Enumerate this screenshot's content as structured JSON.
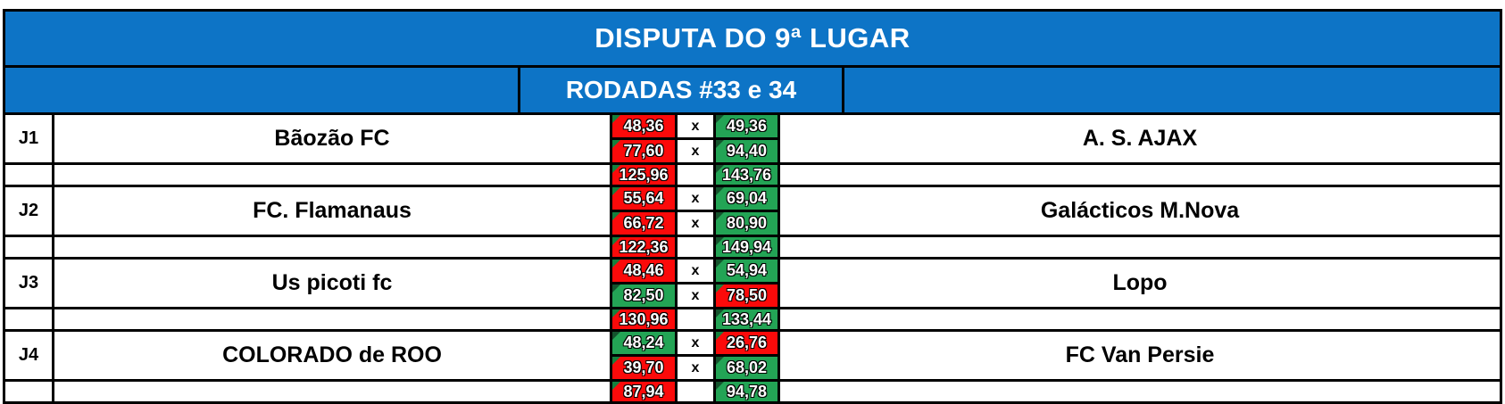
{
  "title": "DISPUTA DO 9ª LUGAR",
  "subtitle": "RODADAS #33 e 34",
  "separator": "x",
  "colors": {
    "header_blue": "#0d74c6",
    "win_green": "#23a455",
    "loss_red": "#fb0a0a",
    "flag_on_green": "#14532d",
    "flag_on_red": "#15803d",
    "grid_line": "#000000",
    "header_text": "#ffffff"
  },
  "matches": [
    {
      "label": "J1",
      "home_team": "Bãozão FC",
      "away_team": "A. S. AJAX",
      "g1": {
        "home": {
          "score": "48,36",
          "result": "loss"
        },
        "away": {
          "score": "49,36",
          "result": "win"
        }
      },
      "g2": {
        "home": {
          "score": "77,60",
          "result": "loss"
        },
        "away": {
          "score": "94,40",
          "result": "win"
        }
      },
      "total": {
        "home": {
          "score": "125,96",
          "result": "loss"
        },
        "away": {
          "score": "143,76",
          "result": "win"
        }
      }
    },
    {
      "label": "J2",
      "home_team": "FC. Flamanaus",
      "away_team": "Galácticos M.Nova",
      "g1": {
        "home": {
          "score": "55,64",
          "result": "loss"
        },
        "away": {
          "score": "69,04",
          "result": "win"
        }
      },
      "g2": {
        "home": {
          "score": "66,72",
          "result": "loss"
        },
        "away": {
          "score": "80,90",
          "result": "win"
        }
      },
      "total": {
        "home": {
          "score": "122,36",
          "result": "loss"
        },
        "away": {
          "score": "149,94",
          "result": "win"
        }
      }
    },
    {
      "label": "J3",
      "home_team": "Us picoti fc",
      "away_team": "Lopo",
      "g1": {
        "home": {
          "score": "48,46",
          "result": "loss"
        },
        "away": {
          "score": "54,94",
          "result": "win"
        }
      },
      "g2": {
        "home": {
          "score": "82,50",
          "result": "win"
        },
        "away": {
          "score": "78,50",
          "result": "loss"
        }
      },
      "total": {
        "home": {
          "score": "130,96",
          "result": "loss"
        },
        "away": {
          "score": "133,44",
          "result": "win"
        }
      }
    },
    {
      "label": "J4",
      "home_team": "COLORADO de ROO",
      "away_team": "FC Van Persie",
      "g1": {
        "home": {
          "score": "48,24",
          "result": "win"
        },
        "away": {
          "score": "26,76",
          "result": "loss"
        }
      },
      "g2": {
        "home": {
          "score": "39,70",
          "result": "loss"
        },
        "away": {
          "score": "68,02",
          "result": "win"
        }
      },
      "total": {
        "home": {
          "score": "87,94",
          "result": "loss"
        },
        "away": {
          "score": "94,78",
          "result": "win"
        }
      }
    }
  ]
}
